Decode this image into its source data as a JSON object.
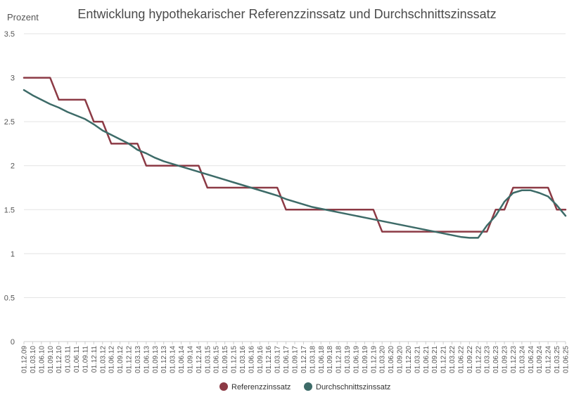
{
  "chart_data": {
    "type": "line",
    "title": "Entwicklung hypothekarischer Referenzzinssatz und Durchschnittszinssatz",
    "ylabel": "Prozent",
    "xlabel": "",
    "ylim": [
      0,
      3.5
    ],
    "yticks": [
      0,
      0.5,
      1,
      1.5,
      2,
      2.5,
      3,
      3.5
    ],
    "ytick_labels": [
      "0",
      "0.5",
      "1",
      "1.5",
      "2",
      "2.5",
      "3",
      "3.5"
    ],
    "grid": true,
    "legend": "bottom-center",
    "x": [
      "01.12.09",
      "01.03.10",
      "01.06.10",
      "01.09.10",
      "01.12.10",
      "01.03.11",
      "01.06.11",
      "01.09.11",
      "01.12.11",
      "01.03.12",
      "01.06.12",
      "01.09.12",
      "01.12.12",
      "01.03.13",
      "01.06.13",
      "01.09.13",
      "01.12.13",
      "01.03.14",
      "01.06.14",
      "01.09.14",
      "01.12.14",
      "01.03.15",
      "01.06.15",
      "01.09.15",
      "01.12.15",
      "01.03.16",
      "01.06.16",
      "01.09.16",
      "01.12.16",
      "01.03.17",
      "01.06.17",
      "01.09.17",
      "01.12.17",
      "01.03.18",
      "01.06.18",
      "01.09.18",
      "01.12.18",
      "01.03.19",
      "01.06.19",
      "01.09.19",
      "01.12.19",
      "01.03.20",
      "01.06.20",
      "01.09.20",
      "01.12.20",
      "01.03.21",
      "01.06.21",
      "01.09.21",
      "01.12.21",
      "01.03.22",
      "01.06.22",
      "01.09.22",
      "01.12.22",
      "01.03.23",
      "01.06.23",
      "01.09.23",
      "01.12.23",
      "01.03.24",
      "01.06.24",
      "01.09.24",
      "01.12.24",
      "01.03.25",
      "01.06.25"
    ],
    "series": [
      {
        "name": "Referenzzinssatz",
        "color": "#8c3a45",
        "step": true,
        "values": [
          3,
          3,
          3,
          3,
          2.75,
          2.75,
          2.75,
          2.75,
          2.5,
          2.5,
          2.25,
          2.25,
          2.25,
          2.25,
          2,
          2,
          2,
          2,
          2,
          2,
          2,
          1.75,
          1.75,
          1.75,
          1.75,
          1.75,
          1.75,
          1.75,
          1.75,
          1.75,
          1.5,
          1.5,
          1.5,
          1.5,
          1.5,
          1.5,
          1.5,
          1.5,
          1.5,
          1.5,
          1.5,
          1.25,
          1.25,
          1.25,
          1.25,
          1.25,
          1.25,
          1.25,
          1.25,
          1.25,
          1.25,
          1.25,
          1.25,
          1.25,
          1.5,
          1.5,
          1.75,
          1.75,
          1.75,
          1.75,
          1.75,
          1.5,
          1.5
        ]
      },
      {
        "name": "Durchschnittszinssatz",
        "color": "#3d6b68",
        "step": false,
        "values": [
          2.86,
          2.8,
          2.75,
          2.7,
          2.66,
          2.61,
          2.57,
          2.53,
          2.47,
          2.4,
          2.35,
          2.3,
          2.25,
          2.18,
          2.14,
          2.09,
          2.05,
          2.02,
          1.99,
          1.96,
          1.93,
          1.9,
          1.87,
          1.84,
          1.81,
          1.78,
          1.75,
          1.72,
          1.69,
          1.66,
          1.62,
          1.59,
          1.56,
          1.53,
          1.51,
          1.49,
          1.47,
          1.45,
          1.43,
          1.41,
          1.39,
          1.37,
          1.35,
          1.33,
          1.31,
          1.29,
          1.27,
          1.25,
          1.23,
          1.21,
          1.19,
          1.18,
          1.18,
          1.32,
          1.43,
          1.59,
          1.69,
          1.72,
          1.72,
          1.69,
          1.65,
          1.55,
          1.43
        ]
      }
    ]
  }
}
